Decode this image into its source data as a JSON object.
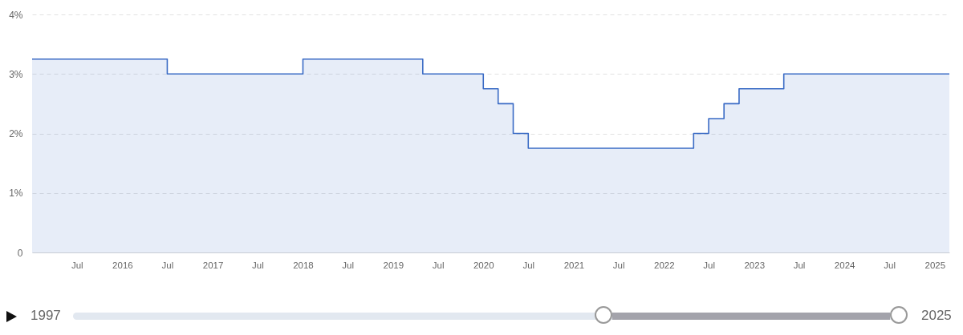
{
  "chart_data": {
    "type": "area",
    "x": [
      "2015-01",
      "2016-07",
      "2016-07",
      "2018-01",
      "2018-01",
      "2019-05",
      "2019-05",
      "2020-01",
      "2020-01",
      "2020-03",
      "2020-03",
      "2020-05",
      "2020-05",
      "2020-07",
      "2020-07",
      "2022-05",
      "2022-05",
      "2022-07",
      "2022-07",
      "2022-09",
      "2022-09",
      "2022-11",
      "2022-11",
      "2023-05",
      "2023-05",
      "2025-03"
    ],
    "series": [
      {
        "color": "#3a6bc5",
        "values": [
          3.25,
          3.25,
          3,
          3,
          3.25,
          3.25,
          3,
          3,
          2.75,
          2.75,
          2.5,
          2.5,
          2,
          2,
          1.75,
          1.75,
          2,
          2,
          2.25,
          2.25,
          2.5,
          2.5,
          2.75,
          2.75,
          3,
          3
        ]
      }
    ],
    "xlim": [
      "2015-01",
      "2025-03"
    ],
    "xticks": [
      {
        "value": "2015-07",
        "label": "Jul"
      },
      {
        "value": "2016-01",
        "label": "2016"
      },
      {
        "value": "2016-07",
        "label": "Jul"
      },
      {
        "value": "2017-01",
        "label": "2017"
      },
      {
        "value": "2017-07",
        "label": "Jul"
      },
      {
        "value": "2018-01",
        "label": "2018"
      },
      {
        "value": "2018-07",
        "label": "Jul"
      },
      {
        "value": "2019-01",
        "label": "2019"
      },
      {
        "value": "2019-07",
        "label": "Jul"
      },
      {
        "value": "2020-01",
        "label": "2020"
      },
      {
        "value": "2020-07",
        "label": "Jul"
      },
      {
        "value": "2021-01",
        "label": "2021"
      },
      {
        "value": "2021-07",
        "label": "Jul"
      },
      {
        "value": "2022-01",
        "label": "2022"
      },
      {
        "value": "2022-07",
        "label": "Jul"
      },
      {
        "value": "2023-01",
        "label": "2023"
      },
      {
        "value": "2023-07",
        "label": "Jul"
      },
      {
        "value": "2024-01",
        "label": "2024"
      },
      {
        "value": "2024-07",
        "label": "Jul"
      },
      {
        "value": "2025-01",
        "label": "2025"
      }
    ],
    "ylim": [
      0,
      4
    ],
    "yticks": [
      {
        "value": 0,
        "label": "0"
      },
      {
        "value": 1,
        "label": "1%"
      },
      {
        "value": 2,
        "label": "2%"
      },
      {
        "value": 3,
        "label": "3%"
      },
      {
        "value": 4,
        "label": "4%"
      }
    ],
    "grid": "y",
    "annotations": [
      "1997",
      "2025"
    ]
  }
}
